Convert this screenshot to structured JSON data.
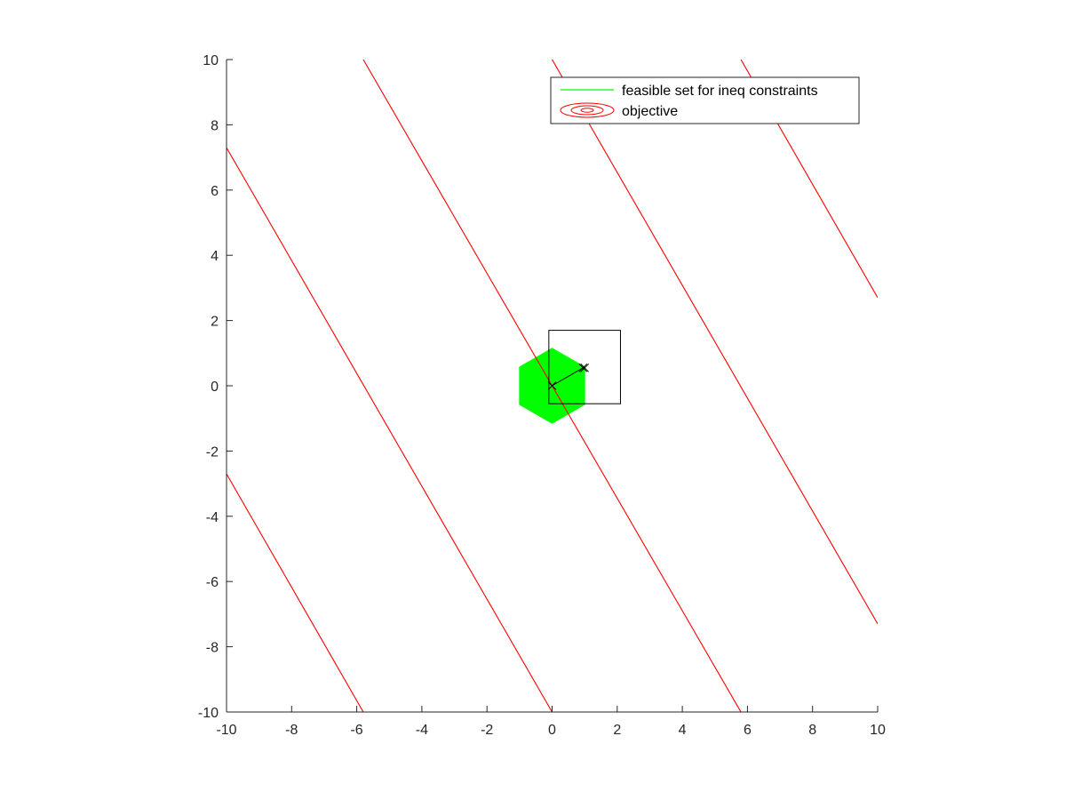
{
  "chart_data": {
    "type": "line",
    "title": "",
    "xlabel": "",
    "ylabel": "",
    "xlim": [
      -10,
      10
    ],
    "ylim": [
      -10,
      10
    ],
    "xticks": [
      -10,
      -8,
      -6,
      -4,
      -2,
      0,
      2,
      4,
      6,
      8,
      10
    ],
    "yticks": [
      -10,
      -8,
      -6,
      -4,
      -2,
      0,
      2,
      4,
      6,
      8,
      10
    ],
    "grid": false,
    "legend_position": "top-right",
    "legend": [
      {
        "label": "feasible set for ineq constraints",
        "kind": "line",
        "color": "#00ff00"
      },
      {
        "label": "objective",
        "kind": "contour",
        "color": "#ff0000"
      }
    ],
    "feasible_set": {
      "color": "#00ff00",
      "vertices": [
        [
          0,
          1.15
        ],
        [
          1,
          0.575
        ],
        [
          1,
          -0.575
        ],
        [
          0,
          -1.15
        ],
        [
          -1,
          -0.575
        ],
        [
          -1,
          0.575
        ]
      ]
    },
    "objective_contours": {
      "color": "#ff0000",
      "lines": [
        [
          [
            -10,
            -2.7
          ],
          [
            -5.8,
            -10
          ]
        ],
        [
          [
            -10,
            7.3
          ],
          [
            0,
            -10
          ]
        ],
        [
          [
            -5.8,
            10
          ],
          [
            5.8,
            -10
          ]
        ],
        [
          [
            0,
            10
          ],
          [
            10,
            -7.3
          ]
        ],
        [
          [
            5.8,
            10
          ],
          [
            10,
            2.7
          ]
        ]
      ]
    },
    "iterate_path": {
      "color": "#000000",
      "points": [
        [
          0,
          0
        ],
        [
          0.95,
          0.55
        ],
        [
          1,
          0.55
        ]
      ]
    },
    "trust_region_box": {
      "color": "#000000",
      "x": [
        -0.1,
        2.1
      ],
      "y": [
        -0.55,
        1.7
      ]
    }
  },
  "colors": {
    "axis": "#262626",
    "background": "#ffffff"
  }
}
